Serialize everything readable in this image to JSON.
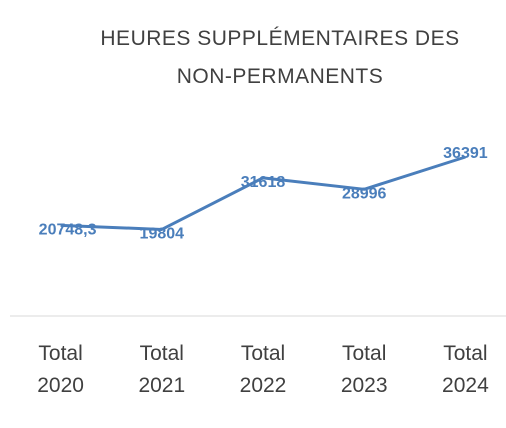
{
  "chart_data": {
    "type": "line",
    "title": "HEURES SUPPLÉMENTAIRES DES NON-PERMANENTS",
    "categories": [
      "Total 2020",
      "Total 2021",
      "Total 2022",
      "Total 2023",
      "Total 2024"
    ],
    "values": [
      20748.3,
      19804,
      31618,
      28996,
      36391
    ],
    "value_labels": [
      "20748,3",
      "19804",
      "31618",
      "28996",
      "36391"
    ],
    "color": "#4a7ebb"
  }
}
